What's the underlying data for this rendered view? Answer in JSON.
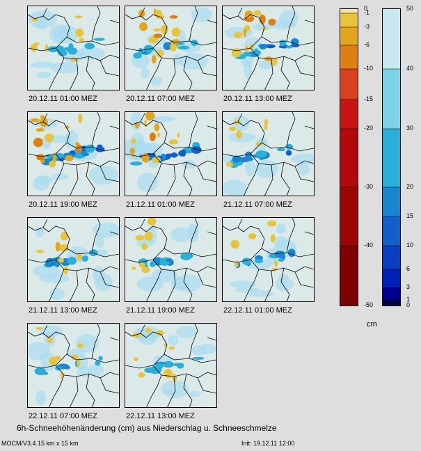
{
  "panels": [
    {
      "label": "20.12.11 01:00 MEZ",
      "snow": 0.25,
      "loss": 0.35
    },
    {
      "label": "20.12.11 07:00 MEZ",
      "snow": 0.45,
      "loss": 0.85
    },
    {
      "label": "20.12.11 13:00 MEZ",
      "snow": 0.95,
      "loss": 0.9
    },
    {
      "label": "20.12.11 19:00 MEZ",
      "snow": 1.0,
      "loss": 0.95
    },
    {
      "label": "21.12.11 01:00 MEZ",
      "snow": 0.9,
      "loss": 0.7
    },
    {
      "label": "21.12.11 07:00 MEZ",
      "snow": 0.7,
      "loss": 0.3
    },
    {
      "label": "21.12.11 13:00 MEZ",
      "snow": 0.55,
      "loss": 0.35
    },
    {
      "label": "21.12.11 19:00 MEZ",
      "snow": 0.55,
      "loss": 0.3
    },
    {
      "label": "22.12.11 01:00 MEZ",
      "snow": 0.45,
      "loss": 0.3
    },
    {
      "label": "22.12.11 07:00 MEZ",
      "snow": 0.35,
      "loss": 0.35
    },
    {
      "label": "22.12.11 13:00 MEZ",
      "snow": 0.35,
      "loss": 0.4
    }
  ],
  "scale_negative": {
    "ticks": [
      "0",
      "-1",
      "-3",
      "-6",
      "-10",
      "-15",
      "-20",
      "-30",
      "-40",
      "-50"
    ],
    "colors": [
      "#f2e3a0",
      "#e8c43a",
      "#e3a51c",
      "#de7f12",
      "#d8401e",
      "#c81414",
      "#b20a0a",
      "#9c0505",
      "#7c0000"
    ]
  },
  "scale_positive": {
    "ticks": [
      "50",
      "40",
      "30",
      "20",
      "15",
      "10",
      "6",
      "3",
      "1",
      "0"
    ],
    "colors": [
      "#c8e8f0",
      "#7dd3e6",
      "#2ab0d8",
      "#1a86d0",
      "#1060c8",
      "#0a3ec0",
      "#0020b8",
      "#000090",
      "#000040"
    ]
  },
  "unit": "cm",
  "caption": "6h-Schneehöhenänderung (cm) aus Niederschlag u. Schneeschmelze",
  "model": "MOCM/V3.4 15 km x 15 km",
  "init": "Init: 19.12.11 12:00"
}
